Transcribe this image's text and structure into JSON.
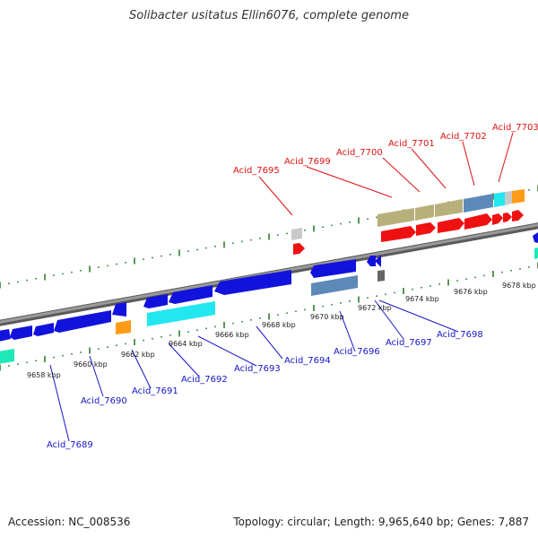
{
  "title": "Solibacter usitatus Ellin6076, complete genome",
  "accession_text": "Accession: NC_008536",
  "summary_text": "Topology: circular; Length: 9,965,640 bp; Genes: 7,887",
  "colors": {
    "backbone": "#8f8f8f",
    "ticks": "#2f7d2f",
    "top_label": "#dd1111",
    "bottom_label": "#1515c8",
    "blue": "#1212dd",
    "cyan": "#22e7ee",
    "steel": "#5d89b9",
    "olive": "#b8b07a",
    "red": "#ee1111",
    "orange": "#ff9b16",
    "silver": "#c9c9c9",
    "gray": "#666666",
    "teal": "#1fe8b8"
  },
  "kbp_ticks": [
    "9658 kbp",
    "9660 kbp",
    "9662 kbp",
    "9664 kbp",
    "9666 kbp",
    "9668 kbp",
    "9670 kbp",
    "9672 kbp",
    "9674 kbp",
    "9676 kbp",
    "9678 kbp"
  ],
  "top_genes": [
    "Acid_7695",
    "Acid_7699",
    "Acid_7700",
    "Acid_7701",
    "Acid_7702",
    "Acid_7703"
  ],
  "bottom_genes": [
    "Acid_7689",
    "Acid_7690",
    "Acid_7691",
    "Acid_7692",
    "Acid_7693",
    "Acid_7694",
    "Acid_7696",
    "Acid_7697",
    "Acid_7698"
  ]
}
